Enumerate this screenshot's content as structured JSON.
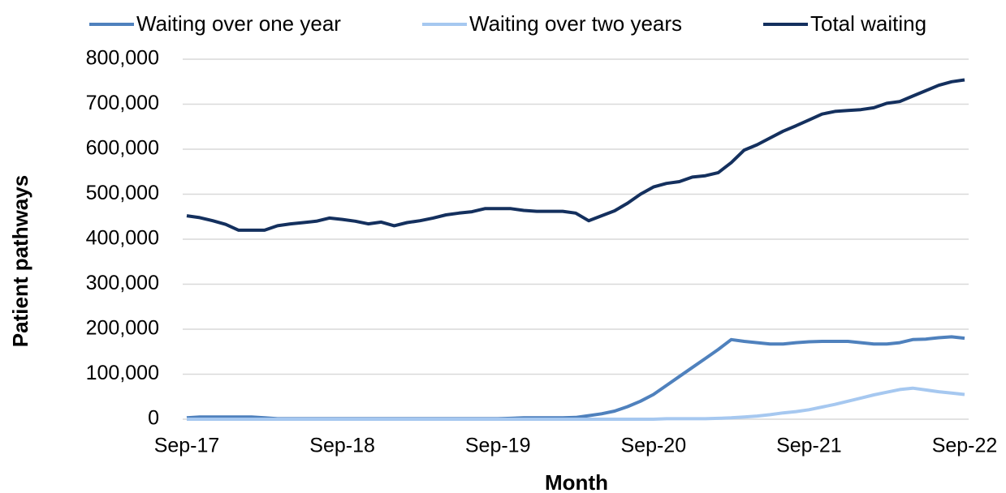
{
  "chart_data": {
    "type": "line",
    "x_label": "Month",
    "y_label": "Patient pathways",
    "categories": [
      "Sep-17",
      null,
      null,
      null,
      null,
      null,
      null,
      null,
      null,
      null,
      null,
      null,
      "Sep-18",
      null,
      null,
      null,
      null,
      null,
      null,
      null,
      null,
      null,
      null,
      null,
      "Sep-19",
      null,
      null,
      null,
      null,
      null,
      null,
      null,
      null,
      null,
      null,
      null,
      "Sep-20",
      null,
      null,
      null,
      null,
      null,
      null,
      null,
      null,
      null,
      null,
      null,
      "Sep-21",
      null,
      null,
      null,
      null,
      null,
      null,
      null,
      null,
      null,
      null,
      null,
      "Sep-22"
    ],
    "series": [
      {
        "name": "Waiting over one year",
        "color": "#4f81bd",
        "values": [
          3000,
          5000,
          5000,
          5000,
          5000,
          5000,
          3000,
          1000,
          1000,
          1000,
          1000,
          1000,
          1000,
          1000,
          1000,
          1000,
          1000,
          1000,
          1000,
          1000,
          1000,
          1000,
          1000,
          1000,
          1000,
          2000,
          3000,
          3000,
          3000,
          3000,
          4000,
          8000,
          12000,
          18000,
          28000,
          40000,
          55000,
          75000,
          95000,
          115000,
          135000,
          155000,
          177000,
          173000,
          170000,
          167000,
          167000,
          170000,
          172000,
          173000,
          173000,
          173000,
          170000,
          167000,
          167000,
          170000,
          177000,
          178000,
          181000,
          183000,
          180000
        ]
      },
      {
        "name": "Waiting over two years",
        "color": "#a6c8f0",
        "values": [
          0,
          0,
          0,
          0,
          0,
          0,
          0,
          0,
          0,
          0,
          0,
          0,
          0,
          0,
          0,
          0,
          0,
          0,
          0,
          0,
          0,
          0,
          0,
          0,
          0,
          0,
          0,
          0,
          0,
          0,
          0,
          0,
          0,
          0,
          0,
          0,
          0,
          1000,
          1000,
          1000,
          1000,
          2000,
          3000,
          5000,
          7000,
          10000,
          14000,
          17000,
          21000,
          27000,
          33000,
          40000,
          47000,
          54000,
          60000,
          66000,
          69000,
          65000,
          61000,
          58000,
          55000
        ]
      },
      {
        "name": "Total waiting",
        "color": "#14305e",
        "values": [
          452000,
          448000,
          441000,
          433000,
          420000,
          420000,
          420000,
          430000,
          434000,
          437000,
          440000,
          447000,
          444000,
          440000,
          434000,
          438000,
          430000,
          437000,
          441000,
          447000,
          454000,
          458000,
          461000,
          468000,
          468000,
          468000,
          464000,
          462000,
          462000,
          462000,
          458000,
          441000,
          452000,
          463000,
          480000,
          500000,
          516000,
          524000,
          528000,
          538000,
          541000,
          548000,
          570000,
          598000,
          610000,
          625000,
          640000,
          652000,
          665000,
          678000,
          684000,
          686000,
          688000,
          692000,
          702000,
          706000,
          718000,
          730000,
          742000,
          750000,
          754000
        ]
      }
    ],
    "ylim": [
      0,
      800000
    ],
    "yticks": [
      0,
      {
        "value": 100000,
        "label": "100,000"
      },
      {
        "value": 200000,
        "label": "200,000"
      },
      {
        "value": 300000,
        "label": "300,000"
      },
      {
        "value": 400000,
        "label": "400,000"
      },
      {
        "value": 500000,
        "label": "500,000"
      },
      {
        "value": 600000,
        "label": "600,000"
      },
      {
        "value": 700000,
        "label": "700,000"
      },
      {
        "value": 800000,
        "label": "800,000"
      }
    ],
    "grid": true,
    "legend": "top"
  }
}
